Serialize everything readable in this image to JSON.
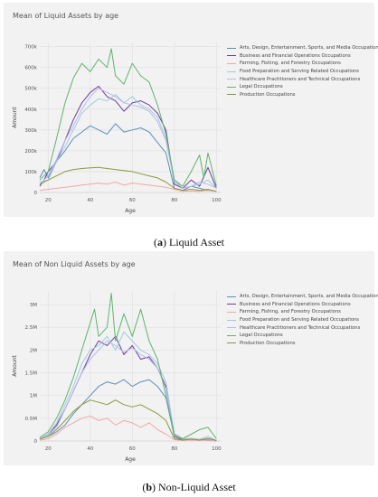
{
  "captions": {
    "a": {
      "letter": "a",
      "text": "Liquid Asset"
    },
    "b": {
      "letter": "b",
      "text": "Non-Liquid Asset"
    }
  },
  "legend": [
    {
      "label": "Arts, Design, Entertainment, Sports, and Media Occupations",
      "color": "#5b8fbd"
    },
    {
      "label": "Business and Financial Operations Occupations",
      "color": "#6a3d9a"
    },
    {
      "label": "Farming, Fishing, and Forestry Occupations",
      "color": "#f4a6a6"
    },
    {
      "label": "Food Preparation and Serving Related Occupations",
      "color": "#9ecae1"
    },
    {
      "label": "Healthcare Practitioners and Technical Occupations",
      "color": "#b9b9e8"
    },
    {
      "label": "Legal Occupations",
      "color": "#5fb46f"
    },
    {
      "label": "Production Occupations",
      "color": "#8a9a3a"
    }
  ],
  "chart_data": [
    {
      "type": "line",
      "title": "Mean of Liquid Assets by age",
      "xlabel": "Age",
      "ylabel": "Amount",
      "xlim": [
        16,
        102
      ],
      "ylim": [
        0,
        720000
      ],
      "xticks": [
        20,
        40,
        60,
        80,
        100
      ],
      "xtick_labels": [
        "20",
        "40",
        "60",
        "80",
        "100"
      ],
      "yticks": [
        0,
        100000,
        200000,
        300000,
        400000,
        500000,
        600000,
        700000
      ],
      "ytick_labels": [
        "0",
        "100k",
        "200k",
        "300k",
        "400k",
        "500k",
        "600k",
        "700k"
      ],
      "grid": true,
      "legend_position": "right",
      "series": [
        {
          "name": "Arts, Design, Entertainment, Sports, and Media Occupations",
          "color": "#5b8fbd",
          "x": [
            16,
            18,
            20,
            24,
            28,
            32,
            36,
            40,
            44,
            48,
            52,
            56,
            60,
            64,
            68,
            72,
            76,
            80,
            84,
            88,
            92,
            96,
            100
          ],
          "y": [
            70000,
            110000,
            70000,
            150000,
            200000,
            260000,
            290000,
            320000,
            300000,
            280000,
            330000,
            290000,
            300000,
            310000,
            290000,
            240000,
            190000,
            20000,
            10000,
            30000,
            20000,
            10000,
            5000
          ]
        },
        {
          "name": "Business and Financial Operations Occupations",
          "color": "#6a3d9a",
          "x": [
            16,
            18,
            20,
            24,
            28,
            32,
            36,
            40,
            44,
            48,
            52,
            56,
            60,
            64,
            68,
            72,
            76,
            80,
            84,
            88,
            92,
            96,
            100
          ],
          "y": [
            30000,
            60000,
            100000,
            150000,
            250000,
            350000,
            430000,
            480000,
            510000,
            460000,
            440000,
            390000,
            430000,
            440000,
            420000,
            380000,
            300000,
            40000,
            20000,
            60000,
            30000,
            120000,
            20000
          ]
        },
        {
          "name": "Farming, Fishing, and Forestry Occupations",
          "color": "#f4a6a6",
          "x": [
            16,
            20,
            24,
            28,
            32,
            36,
            40,
            44,
            48,
            52,
            56,
            60,
            64,
            68,
            72,
            76,
            80,
            84,
            88,
            92,
            96,
            100
          ],
          "y": [
            10000,
            15000,
            20000,
            25000,
            30000,
            35000,
            40000,
            45000,
            40000,
            50000,
            35000,
            45000,
            40000,
            35000,
            30000,
            25000,
            15000,
            5000,
            8000,
            5000,
            10000,
            5000
          ]
        },
        {
          "name": "Food Preparation and Serving Related Occupations",
          "color": "#9ecae1",
          "x": [
            16,
            20,
            24,
            28,
            32,
            36,
            40,
            44,
            48,
            52,
            56,
            60,
            64,
            68,
            72,
            76,
            80,
            84,
            88,
            92,
            96,
            100
          ],
          "y": [
            50000,
            60000,
            150000,
            220000,
            300000,
            380000,
            420000,
            450000,
            440000,
            470000,
            430000,
            460000,
            420000,
            400000,
            360000,
            260000,
            60000,
            20000,
            30000,
            40000,
            60000,
            20000
          ]
        },
        {
          "name": "Healthcare Practitioners and Technical Occupations",
          "color": "#b9b9e8",
          "x": [
            16,
            20,
            24,
            28,
            32,
            36,
            40,
            44,
            48,
            52,
            56,
            60,
            64,
            68,
            72,
            76,
            80,
            84,
            88,
            92,
            96,
            100
          ],
          "y": [
            40000,
            80000,
            160000,
            250000,
            320000,
            400000,
            460000,
            500000,
            480000,
            460000,
            430000,
            420000,
            410000,
            390000,
            340000,
            250000,
            50000,
            20000,
            30000,
            50000,
            40000,
            20000
          ]
        },
        {
          "name": "Legal Occupations",
          "color": "#5fb46f",
          "x": [
            16,
            20,
            24,
            28,
            32,
            36,
            40,
            44,
            48,
            50,
            52,
            56,
            60,
            64,
            68,
            72,
            76,
            80,
            84,
            88,
            92,
            94,
            96,
            100
          ],
          "y": [
            60000,
            100000,
            260000,
            430000,
            550000,
            620000,
            580000,
            640000,
            600000,
            690000,
            560000,
            520000,
            620000,
            560000,
            530000,
            420000,
            280000,
            60000,
            30000,
            100000,
            180000,
            70000,
            190000,
            30000
          ]
        },
        {
          "name": "Production Occupations",
          "color": "#8a9a3a",
          "x": [
            16,
            20,
            24,
            28,
            32,
            36,
            40,
            44,
            48,
            52,
            56,
            60,
            64,
            68,
            72,
            76,
            80,
            84,
            88,
            92,
            96,
            100
          ],
          "y": [
            40000,
            60000,
            80000,
            100000,
            110000,
            115000,
            118000,
            120000,
            115000,
            110000,
            105000,
            100000,
            90000,
            80000,
            70000,
            50000,
            20000,
            10000,
            15000,
            10000,
            15000,
            5000
          ]
        }
      ]
    },
    {
      "type": "line",
      "title": "Mean of Non Liquid Assets by age",
      "xlabel": "Age",
      "ylabel": "Amount",
      "xlim": [
        16,
        102
      ],
      "ylim": [
        0,
        3300000
      ],
      "xticks": [
        20,
        40,
        60,
        80,
        100
      ],
      "xtick_labels": [
        "20",
        "40",
        "60",
        "80",
        "100"
      ],
      "yticks": [
        0,
        500000,
        1000000,
        1500000,
        2000000,
        2500000,
        3000000
      ],
      "ytick_labels": [
        "0",
        "0.5M",
        "1M",
        "1.5M",
        "2M",
        "2.5M",
        "3M"
      ],
      "grid": true,
      "legend_position": "right",
      "series": [
        {
          "name": "Arts, Design, Entertainment, Sports, and Media Occupations",
          "color": "#5b8fbd",
          "x": [
            16,
            20,
            24,
            28,
            32,
            36,
            40,
            44,
            48,
            52,
            56,
            60,
            64,
            68,
            72,
            76,
            80,
            84,
            88,
            92,
            96,
            100
          ],
          "y": [
            50000,
            100000,
            200000,
            350000,
            600000,
            800000,
            1000000,
            1200000,
            1300000,
            1250000,
            1350000,
            1200000,
            1300000,
            1350000,
            1200000,
            950000,
            100000,
            20000,
            50000,
            30000,
            10000,
            5000
          ]
        },
        {
          "name": "Business and Financial Operations Occupations",
          "color": "#6a3d9a",
          "x": [
            16,
            20,
            24,
            28,
            32,
            36,
            40,
            44,
            48,
            52,
            56,
            60,
            64,
            68,
            72,
            76,
            80,
            84,
            88,
            92,
            96,
            100
          ],
          "y": [
            50000,
            150000,
            350000,
            700000,
            1100000,
            1500000,
            1900000,
            2200000,
            2100000,
            2300000,
            1900000,
            2100000,
            1800000,
            1850000,
            1600000,
            1200000,
            100000,
            30000,
            50000,
            20000,
            30000,
            5000
          ]
        },
        {
          "name": "Farming, Fishing, and Forestry Occupations",
          "color": "#f4a6a6",
          "x": [
            16,
            20,
            24,
            28,
            32,
            36,
            40,
            44,
            48,
            52,
            56,
            60,
            64,
            68,
            72,
            76,
            80,
            84,
            88,
            92,
            96,
            100
          ],
          "y": [
            20000,
            50000,
            150000,
            300000,
            400000,
            500000,
            550000,
            450000,
            500000,
            350000,
            450000,
            400000,
            300000,
            400000,
            250000,
            150000,
            30000,
            10000,
            20000,
            10000,
            15000,
            5000
          ]
        },
        {
          "name": "Food Preparation and Serving Related Occupations",
          "color": "#9ecae1",
          "x": [
            16,
            20,
            24,
            28,
            32,
            36,
            40,
            44,
            48,
            52,
            56,
            60,
            64,
            68,
            72,
            76,
            80,
            84,
            88,
            92,
            96,
            100
          ],
          "y": [
            50000,
            150000,
            400000,
            800000,
            1200000,
            1700000,
            2000000,
            2100000,
            2300000,
            2000000,
            2400000,
            2200000,
            2000000,
            1900000,
            1700000,
            1300000,
            150000,
            50000,
            60000,
            40000,
            100000,
            10000
          ]
        },
        {
          "name": "Healthcare Practitioners and Technical Occupations",
          "color": "#b9b9e8",
          "x": [
            16,
            20,
            24,
            28,
            32,
            36,
            40,
            44,
            48,
            52,
            56,
            60,
            64,
            68,
            72,
            76,
            80,
            84,
            88,
            92,
            96,
            100
          ],
          "y": [
            40000,
            120000,
            300000,
            700000,
            1100000,
            1500000,
            1800000,
            2000000,
            2200000,
            2100000,
            1950000,
            2050000,
            1900000,
            1800000,
            1600000,
            1150000,
            120000,
            40000,
            50000,
            30000,
            40000,
            10000
          ]
        },
        {
          "name": "Legal Occupations",
          "color": "#5fb46f",
          "x": [
            16,
            20,
            24,
            28,
            32,
            36,
            40,
            42,
            44,
            48,
            50,
            52,
            56,
            60,
            64,
            68,
            72,
            76,
            80,
            84,
            88,
            92,
            96,
            100
          ],
          "y": [
            80000,
            200000,
            500000,
            900000,
            1400000,
            2000000,
            2600000,
            2900000,
            2300000,
            2500000,
            3250000,
            2200000,
            2800000,
            2300000,
            2900000,
            2200000,
            1800000,
            1000000,
            150000,
            50000,
            150000,
            250000,
            300000,
            50000
          ]
        },
        {
          "name": "Production Occupations",
          "color": "#8a9a3a",
          "x": [
            16,
            20,
            24,
            28,
            32,
            36,
            40,
            44,
            48,
            52,
            56,
            60,
            64,
            68,
            72,
            76,
            80,
            84,
            88,
            92,
            96,
            100
          ],
          "y": [
            40000,
            100000,
            250000,
            450000,
            650000,
            800000,
            900000,
            850000,
            800000,
            900000,
            800000,
            750000,
            800000,
            700000,
            600000,
            450000,
            50000,
            20000,
            40000,
            20000,
            60000,
            10000
          ]
        }
      ]
    }
  ]
}
